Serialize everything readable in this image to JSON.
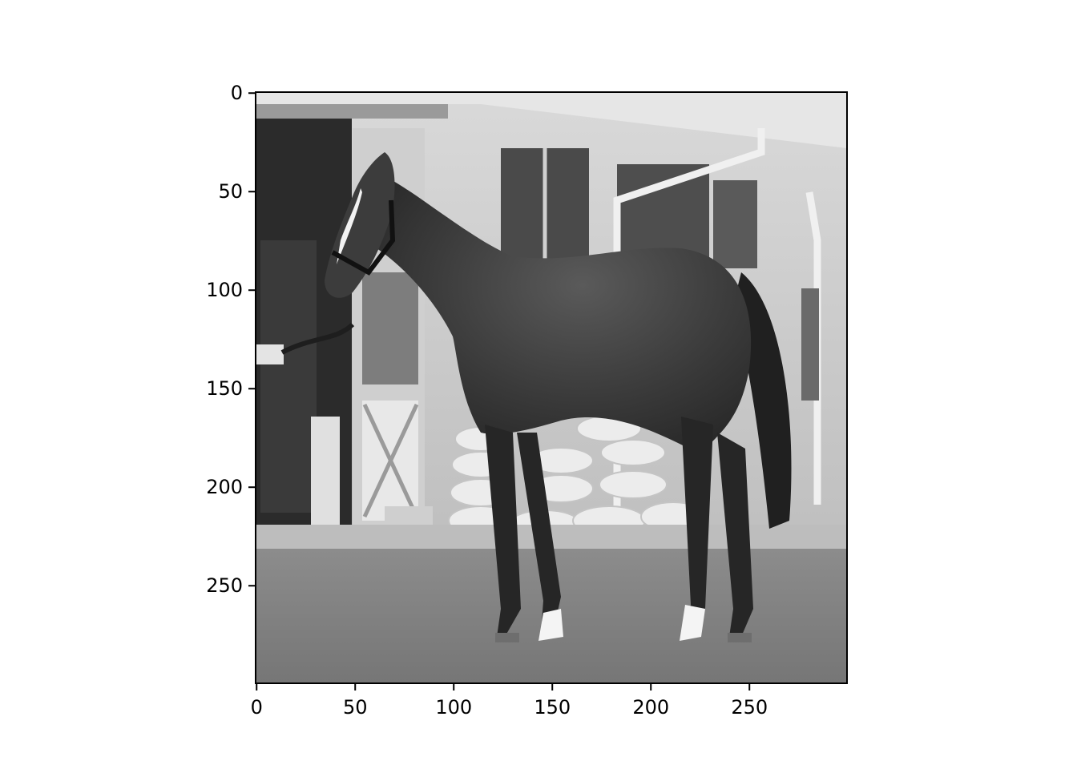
{
  "image": {
    "description_icon": "horse-photo",
    "tone": "grayscale",
    "colors": {
      "frame": "#000000",
      "background": "#ffffff"
    }
  },
  "axes": {
    "x_range": [
      0,
      299
    ],
    "y_range": [
      0,
      299
    ],
    "y_inverted": true,
    "x_ticks": [
      {
        "value": 0,
        "label": "0"
      },
      {
        "value": 50,
        "label": "50"
      },
      {
        "value": 100,
        "label": "100"
      },
      {
        "value": 150,
        "label": "150"
      },
      {
        "value": 200,
        "label": "200"
      },
      {
        "value": 250,
        "label": "250"
      }
    ],
    "y_ticks": [
      {
        "value": 0,
        "label": "0"
      },
      {
        "value": 50,
        "label": "50"
      },
      {
        "value": 100,
        "label": "100"
      },
      {
        "value": 150,
        "label": "150"
      },
      {
        "value": 200,
        "label": "200"
      },
      {
        "value": 250,
        "label": "250"
      }
    ]
  }
}
